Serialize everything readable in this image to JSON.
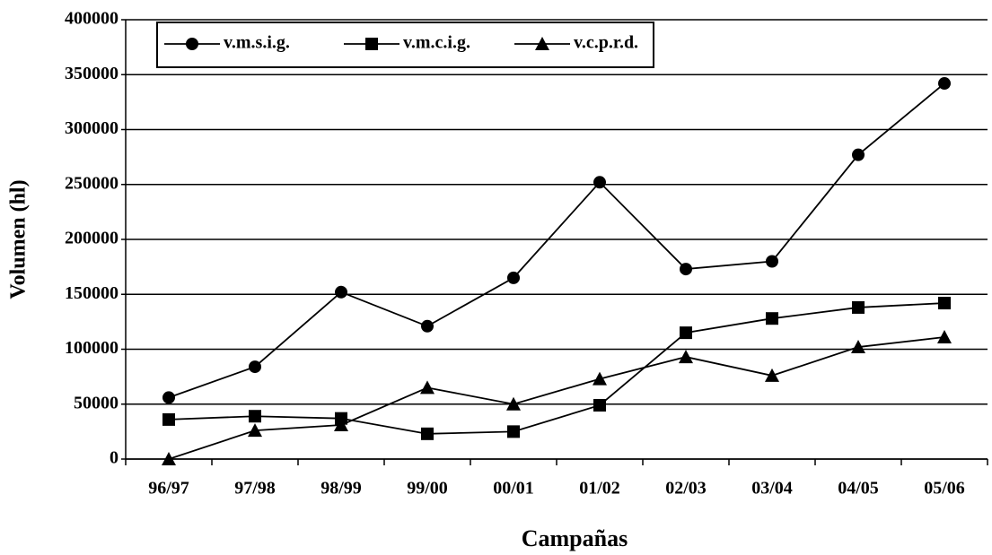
{
  "chart_data": {
    "type": "line",
    "x_label": "Campañas",
    "y_label": "Volumen (hl)",
    "categories": [
      "96/97",
      "97/98",
      "98/99",
      "99/00",
      "00/01",
      "01/02",
      "02/03",
      "03/04",
      "04/05",
      "05/06"
    ],
    "series": [
      {
        "name": "v.m.s.i.g.",
        "color": "#000000",
        "marker": "circle",
        "values": [
          56000,
          84000,
          152000,
          121000,
          165000,
          252000,
          173000,
          180000,
          277000,
          342000
        ]
      },
      {
        "name": "v.m.c.i.g.",
        "color": "#000000",
        "marker": "square",
        "values": [
          36000,
          39000,
          37000,
          23000,
          25000,
          49000,
          115000,
          128000,
          138000,
          142000
        ]
      },
      {
        "name": "v.c.p.r.d.",
        "color": "#000000",
        "marker": "triangle",
        "values": [
          0,
          26000,
          31000,
          65000,
          50000,
          73000,
          93000,
          76000,
          102000,
          111000
        ]
      }
    ],
    "ylim": [
      0,
      400000
    ],
    "yticks": [
      0,
      50000,
      100000,
      150000,
      200000,
      250000,
      300000,
      350000,
      400000
    ],
    "grid": true,
    "legend": "top-left"
  }
}
